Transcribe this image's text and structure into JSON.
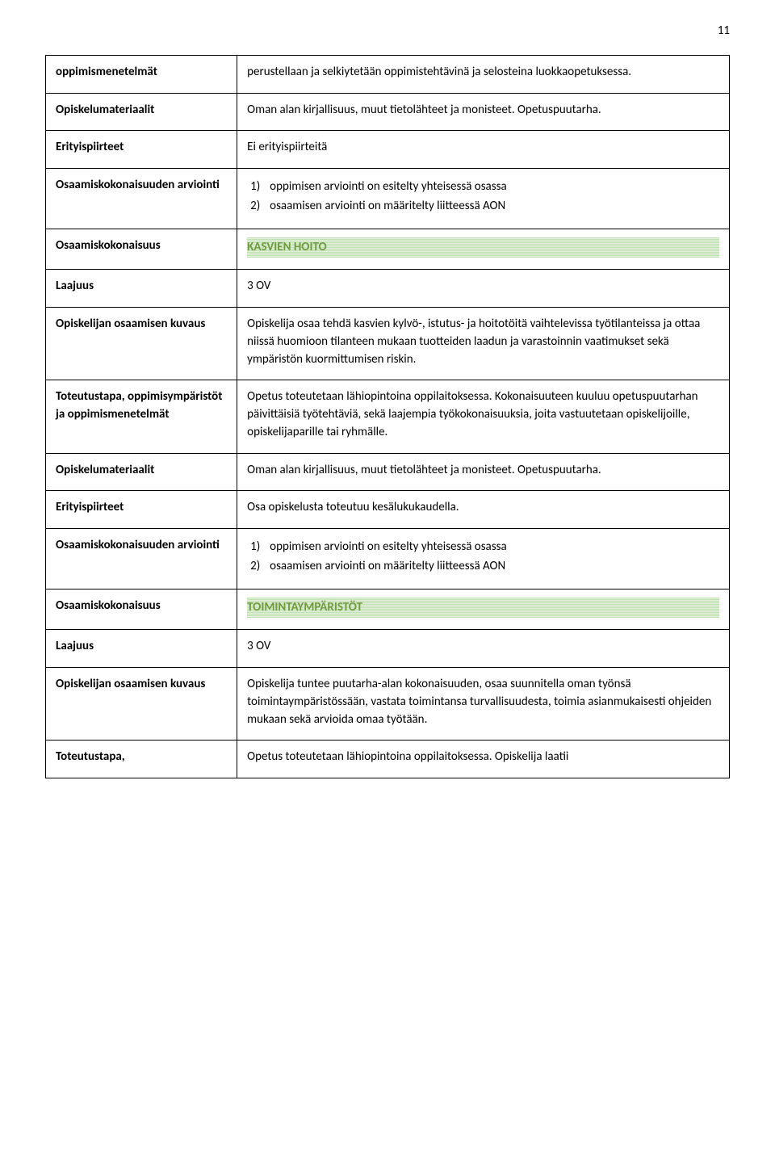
{
  "page_number": "11",
  "colors": {
    "border": "#000000",
    "section_bg_dark": "#c1e0b3",
    "section_bg_light": "#e3f0d9",
    "section_text": "#6f9a3e",
    "text": "#000000"
  },
  "rows": {
    "r1": {
      "label": "oppimismenetelmät",
      "content": "perustellaan ja selkiytetään oppimistehtävinä ja selosteina luokkaopetuksessa."
    },
    "r2": {
      "label": "Opiskelumateriaalit",
      "content": "Oman alan kirjallisuus, muut tietolähteet ja monisteet. Opetuspuutarha."
    },
    "r3": {
      "label": "Erityispiirteet",
      "content": "Ei erityispiirteitä"
    },
    "r4": {
      "label": "Osaamiskokonaisuuden arviointi",
      "item1": "oppimisen arviointi on esitelty yhteisessä osassa",
      "item2": "osaamisen arviointi on määritelty liitteessä AON"
    },
    "sec1": {
      "label": "Osaamiskokonaisuus",
      "title": "KASVIEN HOITO"
    },
    "r5": {
      "label": "Laajuus",
      "content": "3 OV"
    },
    "r6": {
      "label": "Opiskelijan osaamisen kuvaus",
      "content": "Opiskelija osaa tehdä kasvien kylvö-, istutus- ja hoitotöitä vaihtelevissa työtilanteissa ja ottaa niissä huomioon tilanteen mukaan tuotteiden laadun ja varastoinnin vaatimukset sekä ympäristön kuormittumisen riskin."
    },
    "r7": {
      "label": "Toteutustapa, oppimisympäristöt ja oppimismenetelmät",
      "content": " Opetus toteutetaan lähiopintoina oppilaitoksessa. Kokonaisuuteen kuuluu opetuspuutarhan päivittäisiä työtehtäviä, sekä laajempia työkokonaisuuksia, joita vastuutetaan opiskelijoille, opiskelijaparille tai ryhmälle."
    },
    "r8": {
      "label": "Opiskelumateriaalit",
      "content": "Oman alan kirjallisuus, muut tietolähteet ja monisteet. Opetuspuutarha."
    },
    "r9": {
      "label": "Erityispiirteet",
      "content": "Osa opiskelusta toteutuu kesälukukaudella."
    },
    "r10": {
      "label": "Osaamiskokonaisuuden arviointi",
      "item1": "oppimisen arviointi on esitelty yhteisessä osassa",
      "item2": "osaamisen arviointi on määritelty liitteessä AON"
    },
    "sec2": {
      "label": "Osaamiskokonaisuus",
      "title": "TOIMINTAYMPÄRISTÖT"
    },
    "r11": {
      "label": "Laajuus",
      "content": "3 OV"
    },
    "r12": {
      "label": "Opiskelijan osaamisen kuvaus",
      "content": "Opiskelija tuntee puutarha-alan kokonaisuuden, osaa suunnitella oman työnsä toimintaympäristössään, vastata toimintansa turvallisuudesta, toimia asianmukaisesti ohjeiden mukaan sekä arvioida omaa työtään."
    },
    "r13": {
      "label": "Toteutustapa,",
      "content": " Opetus toteutetaan lähiopintoina oppilaitoksessa. Opiskelija laatii"
    }
  }
}
